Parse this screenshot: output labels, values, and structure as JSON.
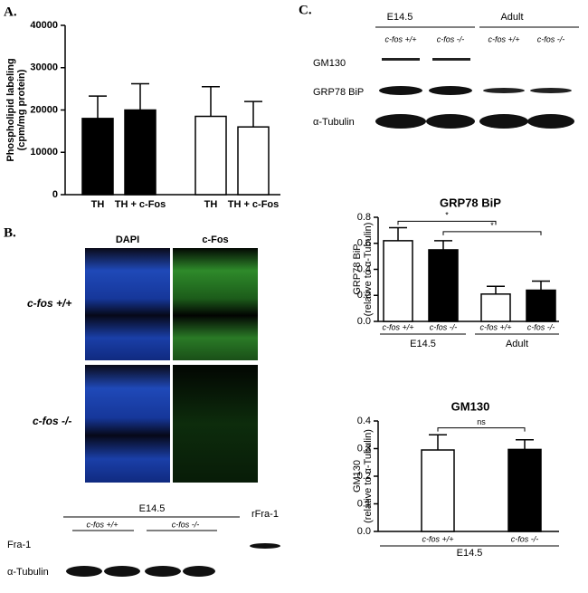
{
  "figure": {
    "panel_labels": [
      "A.",
      "B.",
      "C."
    ],
    "micro_columns": [
      "DAPI",
      "c-Fos"
    ],
    "micro_rows": [
      "c-fos +/+",
      "c-fos -/-"
    ],
    "blot_b": {
      "group": "E14.5",
      "genotypes": [
        "c-fos +/+",
        "c-fos -/-"
      ],
      "control": "rFra-1",
      "rows": [
        "Fra-1",
        "α-Tubulin"
      ]
    },
    "blot_c": {
      "groups": [
        "E14.5",
        "Adult"
      ],
      "genotypes": [
        "c-fos +/+",
        "c-fos -/-",
        "c-fos +/+",
        "c-fos -/-"
      ],
      "rows": [
        "GM130",
        "GRP78 BiP",
        "α-Tubulin"
      ]
    }
  },
  "chart_data": [
    {
      "type": "bar",
      "ylabel": [
        "Phospholipid labeling",
        "(cpm/mg protein)"
      ],
      "categories": [
        "TH",
        "TH + c-Fos",
        "TH",
        "TH + c-Fos"
      ],
      "values": [
        18000,
        20000,
        18500,
        16000
      ],
      "errors": [
        5300,
        6200,
        7000,
        6000
      ],
      "colors": [
        "#000000",
        "#000000",
        "#ffffff",
        "#ffffff"
      ],
      "ylim": [
        0,
        40000
      ],
      "yticks": [
        0,
        10000,
        20000,
        30000,
        40000
      ]
    },
    {
      "type": "bar",
      "title": "GRP78 BiP",
      "ylabel": [
        "GRP78 BiP",
        "(relative to α-Tubulin)"
      ],
      "categories": [
        "c-fos +/+",
        "c-fos -/-",
        "c-fos +/+",
        "c-fos -/-"
      ],
      "groups": [
        "E14.5",
        "Adult"
      ],
      "values": [
        0.62,
        0.55,
        0.21,
        0.24
      ],
      "errors": [
        0.1,
        0.07,
        0.06,
        0.07
      ],
      "colors": [
        "#ffffff",
        "#000000",
        "#ffffff",
        "#000000"
      ],
      "annotations": [
        "*",
        "*"
      ],
      "ylim": [
        0,
        0.8
      ],
      "yticks": [
        {
          "value": 0,
          "label": "0.0"
        },
        {
          "value": 0.2,
          "label": "0.2"
        },
        {
          "value": 0.4,
          "label": "0.4"
        },
        {
          "value": 0.6,
          "label": "0.6"
        },
        {
          "value": 0.8,
          "label": "0.8"
        }
      ]
    },
    {
      "type": "bar",
      "title": "GM130",
      "ylabel": [
        "GM130",
        "(relative to α-Tubulin)"
      ],
      "categories": [
        "c-fos +/+",
        "c-fos -/-"
      ],
      "groups": [
        "E14.5"
      ],
      "values": [
        0.295,
        0.297
      ],
      "errors": [
        0.055,
        0.035
      ],
      "colors": [
        "#ffffff",
        "#000000"
      ],
      "annotations": [
        "ns"
      ],
      "ylim": [
        0,
        0.4
      ],
      "yticks": [
        {
          "value": 0,
          "label": "0.0"
        },
        {
          "value": 0.1,
          "label": "0.1"
        },
        {
          "value": 0.2,
          "label": "0.2"
        },
        {
          "value": 0.3,
          "label": "0.3"
        },
        {
          "value": 0.4,
          "label": "0.4"
        }
      ]
    }
  ]
}
